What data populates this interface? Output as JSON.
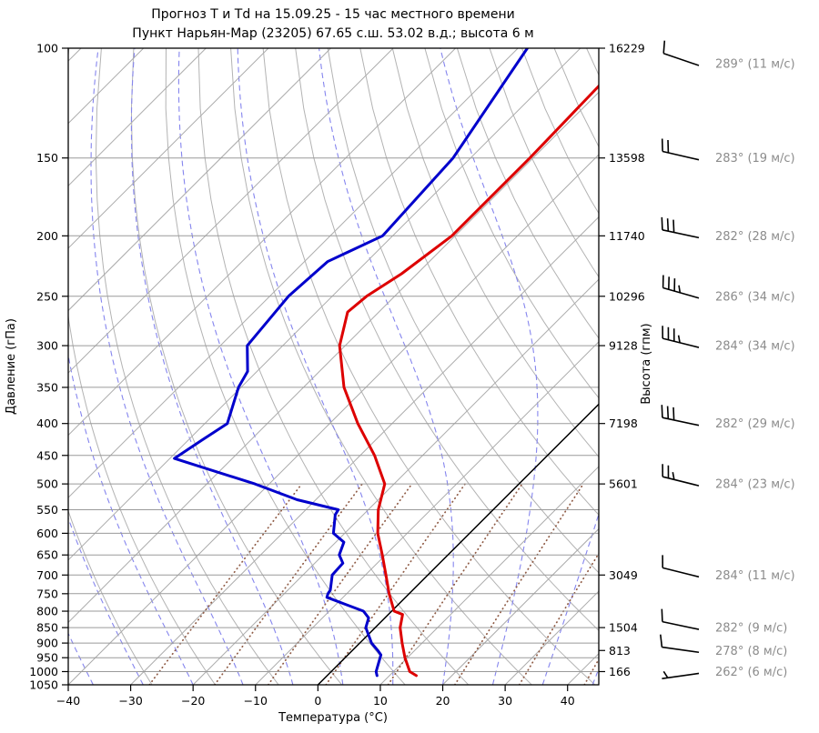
{
  "title": {
    "line1": "Прогноз Т и Td на 15.09.25 - 15 час местного времени",
    "line2": "Пункт Нарьян-Мар (23205) 67.65 с.ш. 53.02 в.д.; высота 6 м"
  },
  "axes": {
    "pressure": {
      "label": "Давление (гПа)",
      "min": 100,
      "max": 1050,
      "ticks": [
        100,
        150,
        200,
        250,
        300,
        350,
        400,
        450,
        500,
        550,
        600,
        650,
        700,
        750,
        800,
        850,
        900,
        950,
        1000,
        1050
      ]
    },
    "temperature": {
      "label": "Температура (°C)",
      "min": -40,
      "max": 45,
      "ticks": [
        -40,
        -30,
        -20,
        -10,
        0,
        10,
        20,
        30,
        40
      ]
    },
    "height": {
      "label": "Высота (гпм)",
      "ticks": [
        {
          "p": 100,
          "gpm": "16229"
        },
        {
          "p": 150,
          "gpm": "13598"
        },
        {
          "p": 200,
          "gpm": "11740"
        },
        {
          "p": 250,
          "gpm": "10296"
        },
        {
          "p": 300,
          "gpm": "9128"
        },
        {
          "p": 400,
          "gpm": "7198"
        },
        {
          "p": 500,
          "gpm": "5601"
        },
        {
          "p": 700,
          "gpm": "3049"
        },
        {
          "p": 850,
          "gpm": "1504"
        },
        {
          "p": 925,
          "gpm": "813"
        },
        {
          "p": 1000,
          "gpm": "166"
        }
      ]
    }
  },
  "chart_data": {
    "type": "line",
    "subtype": "skew-t-log-p",
    "series": [
      {
        "name": "temperature",
        "color": "#dd0000",
        "points_p_t": [
          [
            1015,
            14.3
          ],
          [
            1000,
            12.6
          ],
          [
            950,
            9.6
          ],
          [
            900,
            6.8
          ],
          [
            850,
            4.0
          ],
          [
            810,
            2.3
          ],
          [
            800,
            0.4
          ],
          [
            750,
            -3.2
          ],
          [
            700,
            -6.7
          ],
          [
            650,
            -10.5
          ],
          [
            600,
            -14.7
          ],
          [
            550,
            -18.4
          ],
          [
            500,
            -21.5
          ],
          [
            450,
            -27.7
          ],
          [
            400,
            -35.5
          ],
          [
            350,
            -43.5
          ],
          [
            300,
            -50.9
          ],
          [
            265,
            -55.0
          ],
          [
            250,
            -54.5
          ],
          [
            230,
            -52.5
          ],
          [
            200,
            -50.5
          ],
          [
            150,
            -50.5
          ],
          [
            114,
            -51.0
          ]
        ]
      },
      {
        "name": "dewpoint",
        "color": "#0000cc",
        "points_p_t": [
          [
            1015,
            8.0
          ],
          [
            1000,
            7.2
          ],
          [
            940,
            5.3
          ],
          [
            925,
            4.1
          ],
          [
            900,
            1.9
          ],
          [
            850,
            -1.5
          ],
          [
            820,
            -2.6
          ],
          [
            800,
            -4.5
          ],
          [
            780,
            -8.5
          ],
          [
            760,
            -12.6
          ],
          [
            750,
            -13.0
          ],
          [
            740,
            -13.2
          ],
          [
            700,
            -15.3
          ],
          [
            670,
            -15.5
          ],
          [
            650,
            -17.4
          ],
          [
            620,
            -18.7
          ],
          [
            600,
            -21.8
          ],
          [
            560,
            -24.5
          ],
          [
            550,
            -24.8
          ],
          [
            530,
            -33.0
          ],
          [
            500,
            -42.3
          ],
          [
            455,
            -59.3
          ],
          [
            425,
            -57.8
          ],
          [
            400,
            -56.4
          ],
          [
            350,
            -60.4
          ],
          [
            330,
            -61.5
          ],
          [
            300,
            -65.7
          ],
          [
            250,
            -67.0
          ],
          [
            220,
            -66.3
          ],
          [
            200,
            -61.6
          ],
          [
            150,
            -62.8
          ],
          [
            100,
            -68.5
          ]
        ]
      }
    ],
    "winds": [
      {
        "p": 100,
        "dir": 289,
        "speed": 11,
        "label": "289° (11 м/с)"
      },
      {
        "p": 150,
        "dir": 283,
        "speed": 19,
        "label": "283° (19 м/с)"
      },
      {
        "p": 200,
        "dir": 282,
        "speed": 28,
        "label": "282° (28 м/с)"
      },
      {
        "p": 250,
        "dir": 286,
        "speed": 34,
        "label": "286° (34 м/с)"
      },
      {
        "p": 300,
        "dir": 284,
        "speed": 34,
        "label": "284° (34 м/с)"
      },
      {
        "p": 400,
        "dir": 282,
        "speed": 29,
        "label": "282° (29 м/с)"
      },
      {
        "p": 500,
        "dir": 284,
        "speed": 23,
        "label": "284° (23 м/с)"
      },
      {
        "p": 700,
        "dir": 284,
        "speed": 11,
        "label": "284° (11 м/с)"
      },
      {
        "p": 850,
        "dir": 282,
        "speed": 9,
        "label": "282° (9 м/с)"
      },
      {
        "p": 925,
        "dir": 278,
        "speed": 8,
        "label": "278° (8 м/с)"
      },
      {
        "p": 1000,
        "dir": 262,
        "speed": 6,
        "label": "262° (6 м/с)"
      }
    ],
    "background": {
      "isotherms": {
        "start": -140,
        "end": 40,
        "step": 10,
        "highlight": 0
      },
      "dry_adiabats_c": {
        "start": -30,
        "end": 180,
        "step": 10
      },
      "moist_adiabats_c": [
        -36,
        -28,
        -20,
        -12,
        -4,
        4,
        12,
        20,
        28,
        36,
        44
      ],
      "mixing_ratios_gkg": [
        0.4,
        1,
        2,
        4,
        8,
        16,
        30,
        55
      ],
      "mixing_ratio_top_p": 500
    }
  },
  "colors": {
    "temperature_curve": "#dd0000",
    "dewpoint_curve": "#0000cc",
    "zero_isotherm": "#000000",
    "isobar": "#9a9a9a",
    "isotherm": "#ababab",
    "dry_adiabat": "#b3b3b3",
    "moist_adiabat": "#8585ee",
    "mixing_ratio": "#8f5b45",
    "wind_barb": "#000000",
    "wind_label": "#8c8c8c"
  }
}
